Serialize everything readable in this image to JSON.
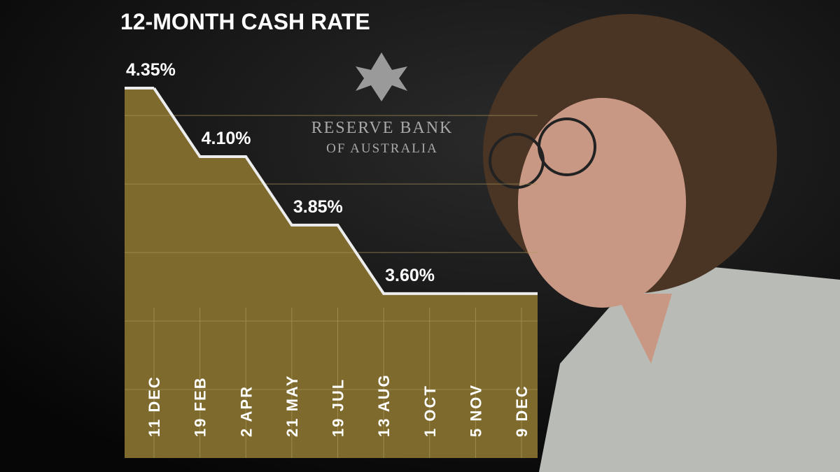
{
  "chart_data": {
    "type": "step-area",
    "title": "12-MONTH CASH RATE",
    "categories": [
      "11 DEC",
      "19 FEB",
      "2 APR",
      "21 MAY",
      "19 JUL",
      "13 AUG",
      "1 OCT",
      "5 NOV",
      "9 DEC"
    ],
    "values": [
      4.35,
      4.1,
      4.1,
      3.85,
      3.85,
      3.6,
      3.6,
      3.6,
      3.6
    ],
    "value_labels": [
      "4.35%",
      "4.10%",
      null,
      "3.85%",
      null,
      "3.60%",
      null,
      null,
      null
    ],
    "color": "#7d6a2c",
    "ylim": [
      3.0,
      4.35
    ],
    "yticks": [
      3.25,
      3.5,
      3.75,
      4.0,
      4.25
    ],
    "grid": true
  },
  "logo": {
    "line1": "RESERVE BANK",
    "line2": "OF AUSTRALIA"
  }
}
